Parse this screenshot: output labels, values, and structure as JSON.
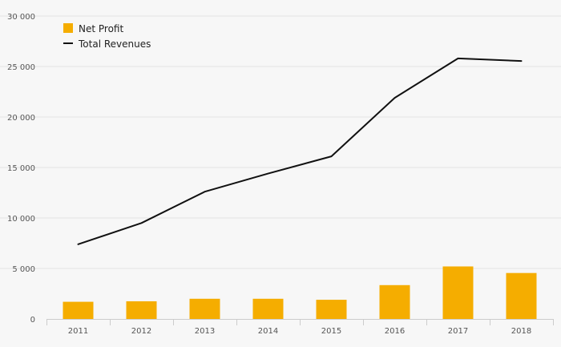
{
  "chart_data": {
    "type": "bar",
    "categories": [
      "2011",
      "2012",
      "2013",
      "2014",
      "2015",
      "2016",
      "2017",
      "2018"
    ],
    "series": [
      {
        "name": "Net Profit",
        "type": "bar",
        "color": "#f5ad00",
        "values": [
          1700,
          1750,
          2000,
          2000,
          1900,
          3350,
          5200,
          4550
        ]
      },
      {
        "name": "Total Revenues",
        "type": "line",
        "color": "#111111",
        "values": [
          7400,
          9500,
          12600,
          14400,
          16100,
          21900,
          25800,
          25550
        ]
      }
    ],
    "title": "",
    "xlabel": "",
    "ylabel": "",
    "ylim": [
      0,
      30000
    ],
    "yticks": [
      {
        "value": 0,
        "label": "0"
      },
      {
        "value": 5000,
        "label": "5 000"
      },
      {
        "value": 10000,
        "label": "10 000"
      },
      {
        "value": 15000,
        "label": "15 000"
      },
      {
        "value": 20000,
        "label": "20 000"
      },
      {
        "value": 25000,
        "label": "25 000"
      },
      {
        "value": 30000,
        "label": "30 000"
      }
    ],
    "grid": true,
    "legend": "top-left"
  }
}
